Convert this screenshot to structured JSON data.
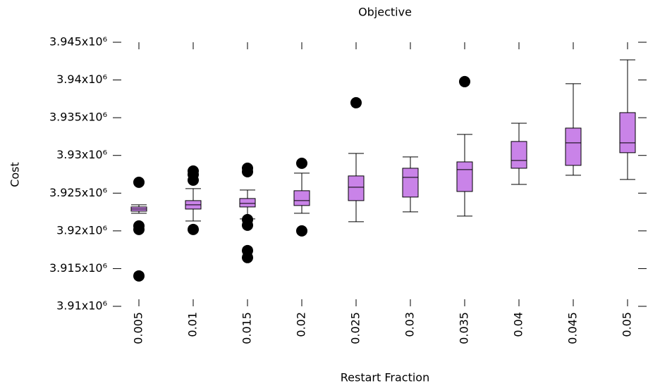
{
  "chart_data": {
    "type": "boxplot",
    "title": "Objective",
    "x_label": "Restart Fraction",
    "y_label": "Cost",
    "categories": [
      "0.005",
      "0.01",
      "0.015",
      "0.02",
      "0.025",
      "0.03",
      "0.035",
      "0.04",
      "0.045",
      "0.05"
    ],
    "color": "#c983e8",
    "boxes": [
      {
        "min": 3922330,
        "q1": 3922610,
        "median": 3922890,
        "q3": 3923170,
        "max": 3923450,
        "outliers": [
          3926440,
          3920650,
          3920190,
          3914030
        ]
      },
      {
        "min": 3921310,
        "q1": 3922890,
        "median": 3923450,
        "q3": 3924010,
        "max": 3925600,
        "outliers": [
          3927930,
          3927460,
          3926720,
          3920190
        ]
      },
      {
        "min": 3921590,
        "q1": 3923170,
        "median": 3923640,
        "q3": 3924290,
        "max": 3925410,
        "outliers": [
          3928300,
          3927840,
          3921490,
          3920750,
          3917390,
          3916460
        ]
      },
      {
        "min": 3922330,
        "q1": 3923360,
        "median": 3924010,
        "q3": 3925320,
        "max": 3927650,
        "outliers": [
          3928960,
          3920000
        ]
      },
      {
        "min": 3921210,
        "q1": 3924010,
        "median": 3925780,
        "q3": 3927280,
        "max": 3930260,
        "outliers": [
          3936980
        ]
      },
      {
        "min": 3922520,
        "q1": 3924480,
        "median": 3927090,
        "q3": 3928300,
        "max": 3929800,
        "outliers": []
      },
      {
        "min": 3921960,
        "q1": 3925220,
        "median": 3928120,
        "q3": 3929140,
        "max": 3932780,
        "outliers": [
          3939780
        ]
      },
      {
        "min": 3926160,
        "q1": 3928300,
        "median": 3929330,
        "q3": 3931850,
        "max": 3934270,
        "outliers": []
      },
      {
        "min": 3927370,
        "q1": 3928680,
        "median": 3931660,
        "q3": 3933620,
        "max": 3939500,
        "outliers": []
      },
      {
        "min": 3926810,
        "q1": 3930360,
        "median": 3931660,
        "q3": 3935670,
        "max": 3942670,
        "outliers": []
      }
    ],
    "ylim": [
      3910000,
      3945000
    ],
    "yticks": [
      {
        "value": 3910000,
        "label": "3.91x10⁶"
      },
      {
        "value": 3915000,
        "label": "3.915x10⁶"
      },
      {
        "value": 3920000,
        "label": "3.92x10⁶"
      },
      {
        "value": 3925000,
        "label": "3.925x10⁶"
      },
      {
        "value": 3930000,
        "label": "3.93x10⁶"
      },
      {
        "value": 3935000,
        "label": "3.935x10⁶"
      },
      {
        "value": 3940000,
        "label": "3.94x10⁶"
      },
      {
        "value": 3945000,
        "label": "3.945x10⁶"
      }
    ]
  }
}
